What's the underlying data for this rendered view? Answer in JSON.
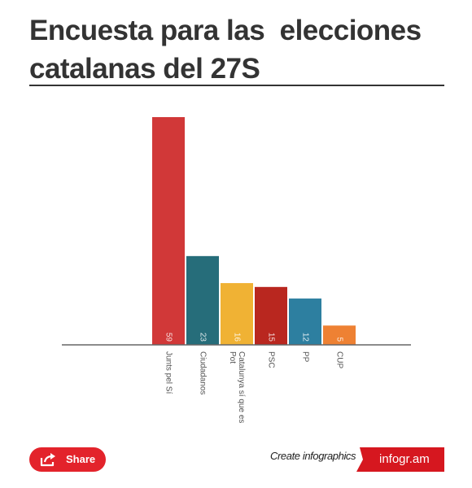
{
  "title": "Encuesta para las  elecciones catalanas del 27S",
  "share_label": "Share",
  "create_label": "Create infographics",
  "brand_label": "infogr.am",
  "colors": {
    "title": "#333333",
    "accent": "#e3232b",
    "axis": "#666666"
  },
  "icons": {
    "share": "share-icon"
  },
  "chart_data": {
    "type": "bar",
    "categories": [
      "Junts pel Sí",
      "Ciudadanos",
      "Catalunya sí que es Pot",
      "PSC",
      "PP",
      "CUP"
    ],
    "values": [
      59,
      23,
      16,
      15,
      12,
      5
    ],
    "colors": [
      "#d13838",
      "#266d7a",
      "#f0b234",
      "#b9271f",
      "#2d7fa0",
      "#ee8133"
    ],
    "ylim": [
      0,
      59
    ],
    "grid": false,
    "legend": "none",
    "data_labels": true
  }
}
